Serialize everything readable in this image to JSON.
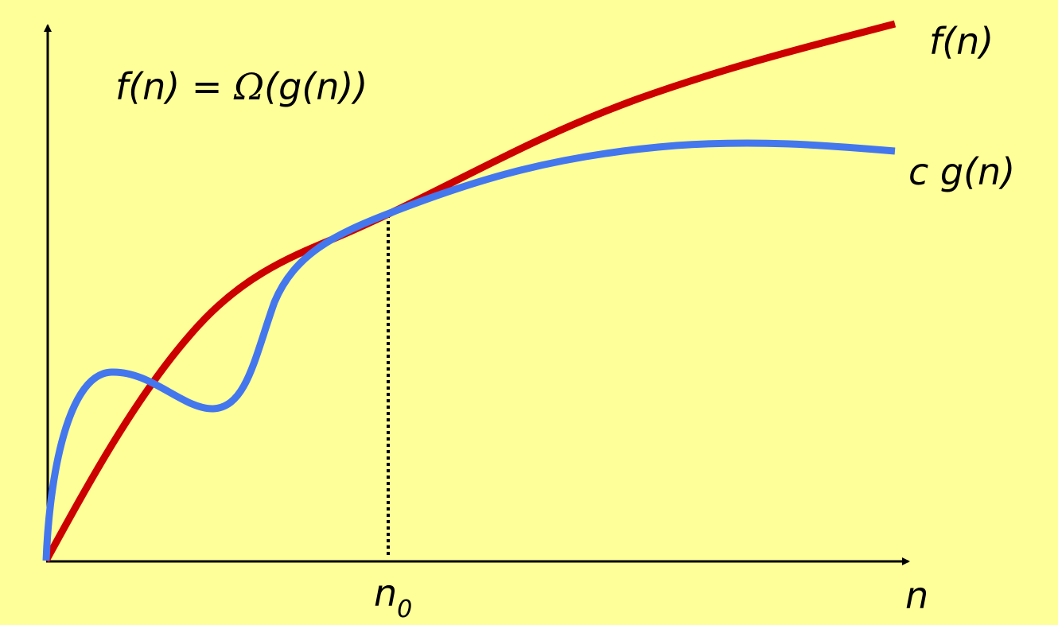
{
  "formula": {
    "left": "f(n) = ",
    "omega": "Ω",
    "right": "(g(n))"
  },
  "curve_labels": {
    "f": "f(n)",
    "cg": "c g(n)"
  },
  "axis_labels": {
    "n0": {
      "base": "n",
      "subscript": "0"
    },
    "x": "n"
  }
}
